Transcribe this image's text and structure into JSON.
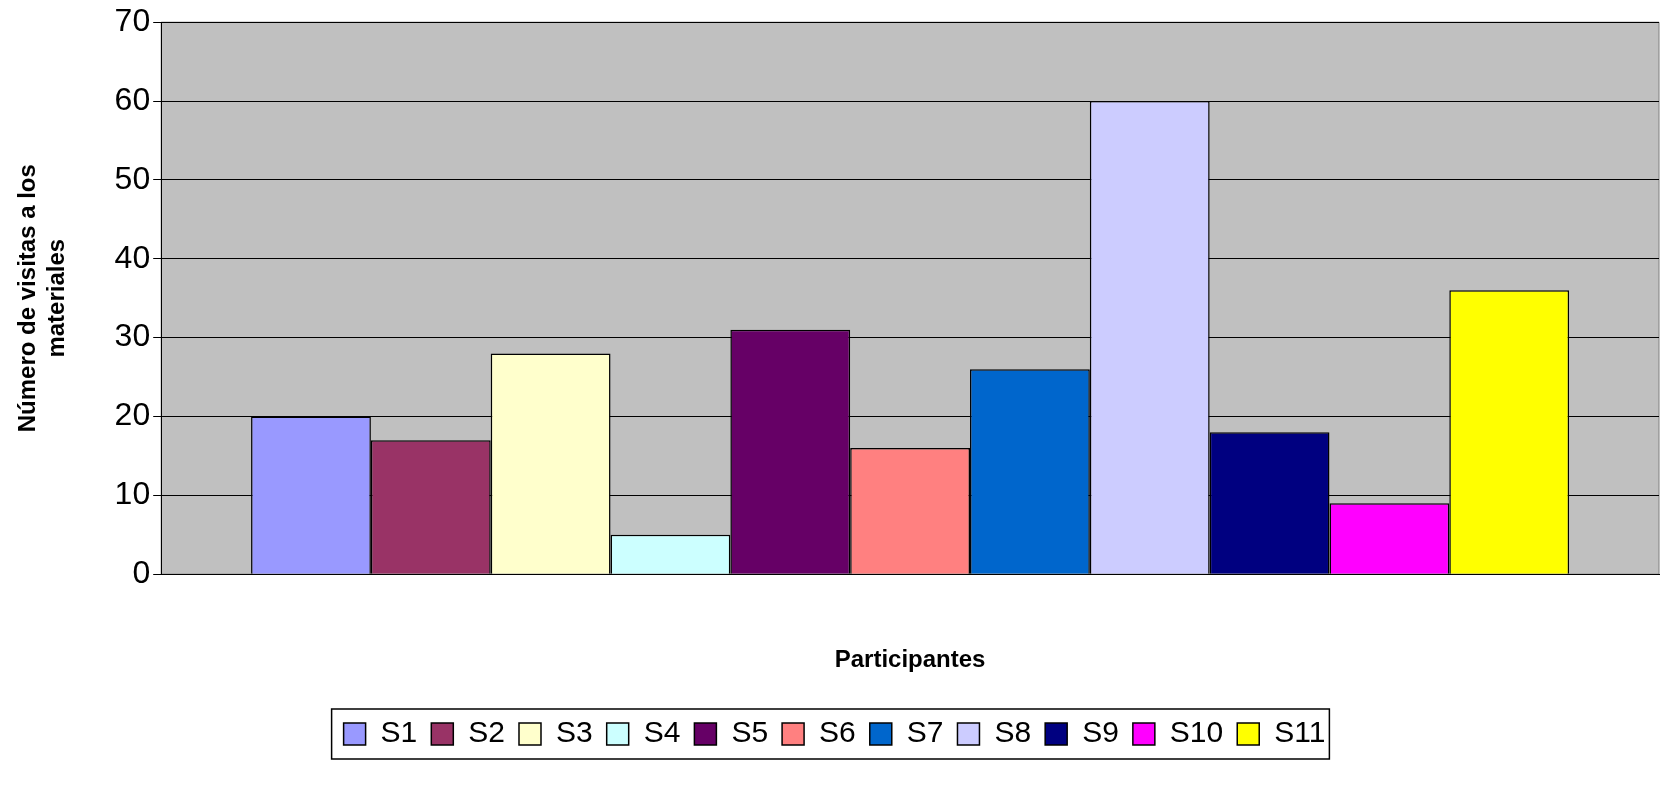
{
  "chart_data": {
    "type": "bar",
    "xlabel": "Participantes",
    "ylabel": "Número de visitas a los materiales",
    "categories": [
      null
    ],
    "series": [
      {
        "name": "S1",
        "color": "#9999ff",
        "values": [
          20
        ]
      },
      {
        "name": "S2",
        "color": "#993366",
        "values": [
          17
        ]
      },
      {
        "name": "S3",
        "color": "#ffffcc",
        "values": [
          28
        ]
      },
      {
        "name": "S4",
        "color": "#ccffff",
        "values": [
          5
        ]
      },
      {
        "name": "S5",
        "color": "#660066",
        "values": [
          31
        ]
      },
      {
        "name": "S6",
        "color": "#ff8080",
        "values": [
          16
        ]
      },
      {
        "name": "S7",
        "color": "#0066cc",
        "values": [
          26
        ]
      },
      {
        "name": "S8",
        "color": "#ccccff",
        "values": [
          60
        ]
      },
      {
        "name": "S9",
        "color": "#000080",
        "values": [
          18
        ]
      },
      {
        "name": "S10",
        "color": "#ff00ff",
        "values": [
          9
        ]
      },
      {
        "name": "S11",
        "color": "#ffff00",
        "values": [
          36
        ]
      }
    ],
    "ylim": [
      0,
      70
    ],
    "yticks": [
      0,
      10,
      20,
      30,
      40,
      50,
      60,
      70
    ],
    "grid": "y",
    "legend": "bottom"
  }
}
